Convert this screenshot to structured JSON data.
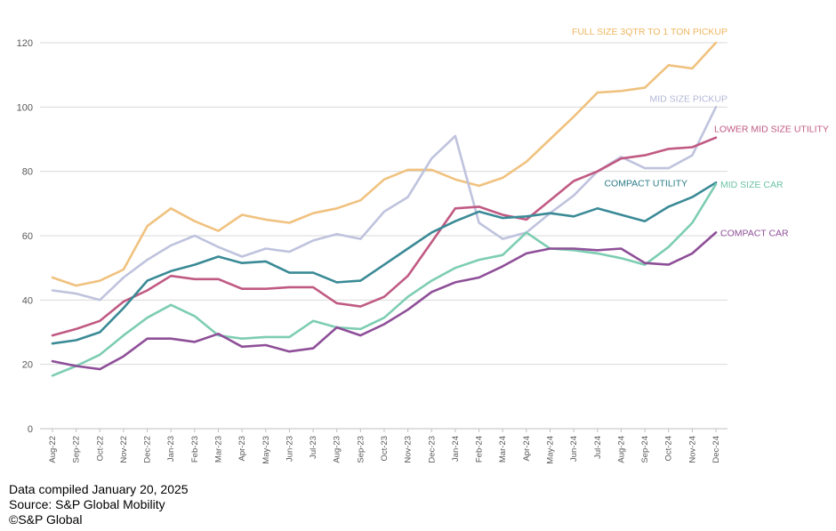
{
  "chart_data": {
    "type": "line",
    "title": "",
    "xlabel": "",
    "ylabel": "",
    "ylim": [
      0,
      120
    ],
    "yticks": [
      0,
      20,
      40,
      60,
      80,
      100,
      120
    ],
    "grid": true,
    "categories": [
      "Aug-22",
      "Sep-22",
      "Oct-22",
      "Nov-22",
      "Dec-22",
      "Jan-23",
      "Feb-23",
      "Mar-23",
      "Apr-23",
      "May-23",
      "Jun-23",
      "Jul-23",
      "Aug-23",
      "Sep-23",
      "Oct-23",
      "Nov-23",
      "Dec-23",
      "Jan-24",
      "Feb-24",
      "Mar-24",
      "Apr-24",
      "May-24",
      "Jun-24",
      "Jul-24",
      "Aug-24",
      "Sep-24",
      "Oct-24",
      "Nov-24",
      "Dec-24"
    ],
    "series": [
      {
        "name": "FULL SIZE 3QTR TO 1 TON PICKUP",
        "color": "#f0c27f",
        "values": [
          47,
          44.5,
          46,
          49.5,
          63,
          68.5,
          64.5,
          61.5,
          66.5,
          65,
          64,
          67,
          68.5,
          71,
          77.5,
          80.5,
          80.5,
          77.5,
          75.5,
          78,
          83,
          90,
          97,
          104.5,
          105,
          106,
          113,
          112,
          120
        ]
      },
      {
        "name": "MID SIZE PICKUP",
        "color": "#bfc3dd",
        "values": [
          43,
          42,
          40,
          47,
          52.5,
          57,
          60,
          56.5,
          53.5,
          56,
          55,
          58.5,
          60.5,
          59,
          67.5,
          72,
          84,
          91,
          64,
          59,
          61,
          67,
          72.5,
          80,
          84.5,
          81,
          81,
          85,
          100
        ]
      },
      {
        "name": "LOWER MID SIZE UTILITY",
        "color": "#c05a83",
        "values": [
          29,
          31,
          33.5,
          39.5,
          43,
          47.5,
          46.5,
          46.5,
          43.5,
          43.5,
          44,
          44,
          39,
          38,
          41,
          47.5,
          58,
          68.5,
          69,
          66.5,
          65,
          71,
          77,
          80,
          84,
          85,
          87,
          87.5,
          90.5
        ]
      },
      {
        "name": "COMPACT UTILITY",
        "color": "#3a8a96",
        "values": [
          26.5,
          27.5,
          30,
          37.5,
          46,
          49,
          51,
          53.5,
          51.5,
          52,
          48.5,
          48.5,
          45.5,
          46,
          51,
          56,
          61,
          64.5,
          67.5,
          65.5,
          66,
          67,
          66,
          68.5,
          66.5,
          64.5,
          69,
          72,
          76.5
        ]
      },
      {
        "name": "MID SIZE CAR",
        "color": "#7dcdb3",
        "values": [
          16.5,
          19.5,
          23,
          29,
          34.5,
          38.5,
          35,
          29,
          28,
          28.5,
          28.5,
          33.5,
          31.5,
          31,
          34.5,
          41,
          46,
          50,
          52.5,
          54,
          61,
          56,
          55.5,
          54.5,
          53,
          51,
          56.5,
          64,
          76
        ]
      },
      {
        "name": "COMPACT CAR",
        "color": "#8e4f98",
        "values": [
          21,
          19.5,
          18.5,
          22.5,
          28,
          28,
          27,
          29.5,
          25.5,
          26,
          24,
          25,
          31.5,
          29,
          32.5,
          37,
          42.5,
          45.5,
          47,
          50.5,
          54.5,
          56,
          56,
          55.5,
          56,
          51.5,
          51,
          54.5,
          61
        ]
      }
    ],
    "labels": [
      {
        "series": "FULL SIZE 3QTR TO 1 TON PICKUP",
        "text": "FULL SIZE 3QTR TO 1 TON PICKUP",
        "color": "#f0b660"
      },
      {
        "series": "MID SIZE PICKUP",
        "text": "MID SIZE PICKUP",
        "color": "#b3b8d6"
      },
      {
        "series": "LOWER MID SIZE UTILITY",
        "text": "LOWER MID SIZE UTILITY",
        "color": "#c05a83"
      },
      {
        "series": "COMPACT UTILITY",
        "text": "COMPACT UTILITY",
        "color": "#2c7c87"
      },
      {
        "series": "MID SIZE CAR",
        "text": "MID SIZE CAR",
        "color": "#6cc3a6"
      },
      {
        "series": "COMPACT CAR",
        "text": "COMPACT CAR",
        "color": "#8e4f98"
      }
    ]
  },
  "footer": {
    "compiled": "Data compiled January 20, 2025",
    "source": "Source: S&P Global Mobility",
    "copyright": "©S&P Global"
  }
}
